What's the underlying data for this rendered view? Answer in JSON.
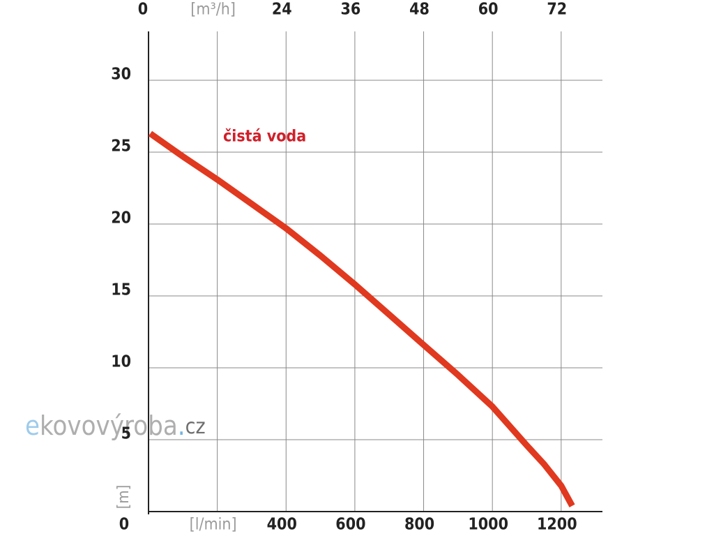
{
  "chart_data": {
    "type": "line",
    "annotation": "čistá voda",
    "y_label": "[m]",
    "watermark": [
      "e",
      "kovovýroba",
      ".",
      "cz"
    ],
    "xlim": [
      0,
      1320
    ],
    "ylim": [
      0,
      33.4
    ],
    "xticks": [
      0,
      {
        "value": 200,
        "label": "[l/min]"
      },
      400,
      600,
      800,
      1000,
      1200
    ],
    "x2ticks": [
      0,
      {
        "value": 200,
        "label": "[m³/h]"
      },
      {
        "value": 400,
        "label": "24"
      },
      {
        "value": 600,
        "label": "36"
      },
      {
        "value": 800,
        "label": "48"
      },
      {
        "value": 1000,
        "label": "60"
      },
      {
        "value": 1200,
        "label": "72"
      }
    ],
    "yticks": [
      0,
      5,
      10,
      15,
      20,
      25,
      30
    ],
    "grid": true,
    "series": [
      {
        "name": "čistá voda",
        "color": "#e0391f",
        "x": [
          5,
          100,
          200,
          300,
          400,
          500,
          600,
          700,
          800,
          900,
          1000,
          1100,
          1150,
          1200,
          1232
        ],
        "values": [
          26.3,
          24.7,
          23.1,
          21.4,
          19.7,
          17.8,
          15.8,
          13.7,
          11.6,
          9.5,
          7.3,
          4.6,
          3.3,
          1.8,
          0.4
        ]
      }
    ]
  }
}
